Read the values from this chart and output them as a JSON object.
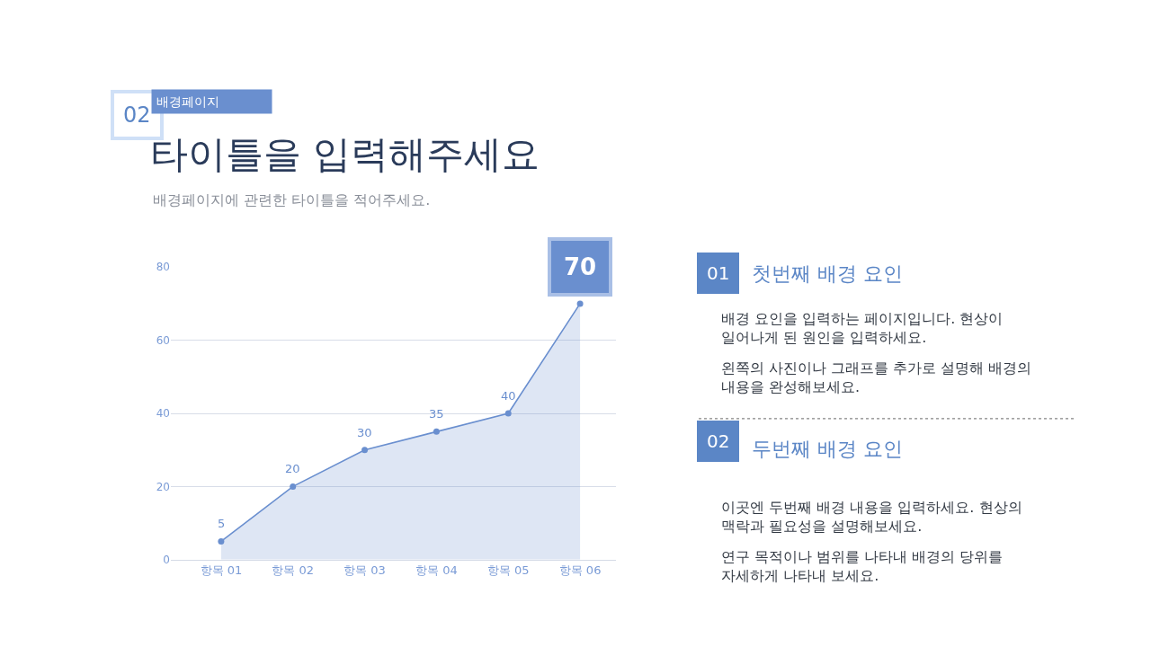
{
  "chart_data": [
    {
      "type": "area",
      "title": "타이틀을 입력해주세요",
      "subtitle": "배경페이지에 관련한 타이틀을 적어주세요.",
      "annotations": [
        "02",
        "배경페이지"
      ],
      "categories": [
        "항목 01",
        "항목 02",
        "항목 03",
        "항목 04",
        "항목 05",
        "항목 06"
      ],
      "series": [
        {
          "color": "#6a8fcf",
          "values": [
            5,
            20,
            30,
            35,
            40,
            70
          ]
        }
      ],
      "ylim": [
        0,
        80
      ],
      "yticks": [
        0,
        20,
        40,
        60,
        80
      ],
      "grid": "y",
      "marker": "circle",
      "data_labels": true
    },
    {
      "type": "other",
      "annotations": [
        "01",
        "첫번째 배경 요인",
        "배경 요인을 입력하는 페이지입니다. 현상이 일어나게 된 원인을 입력하세요.",
        "왼쪽의 사진이나 그래프를 추가로 설명해 배경의 내용을 완성해보세요.",
        "02",
        "두번째 배경 요인",
        "이곳엔 두번째 배경 내용을 입력하세요. 현상의 맥락과 필요성을 설명해보세요.",
        "연구 목적이나 범위를 나타내 배경의 당위를 자세하게 나타내 보세요."
      ]
    }
  ]
}
